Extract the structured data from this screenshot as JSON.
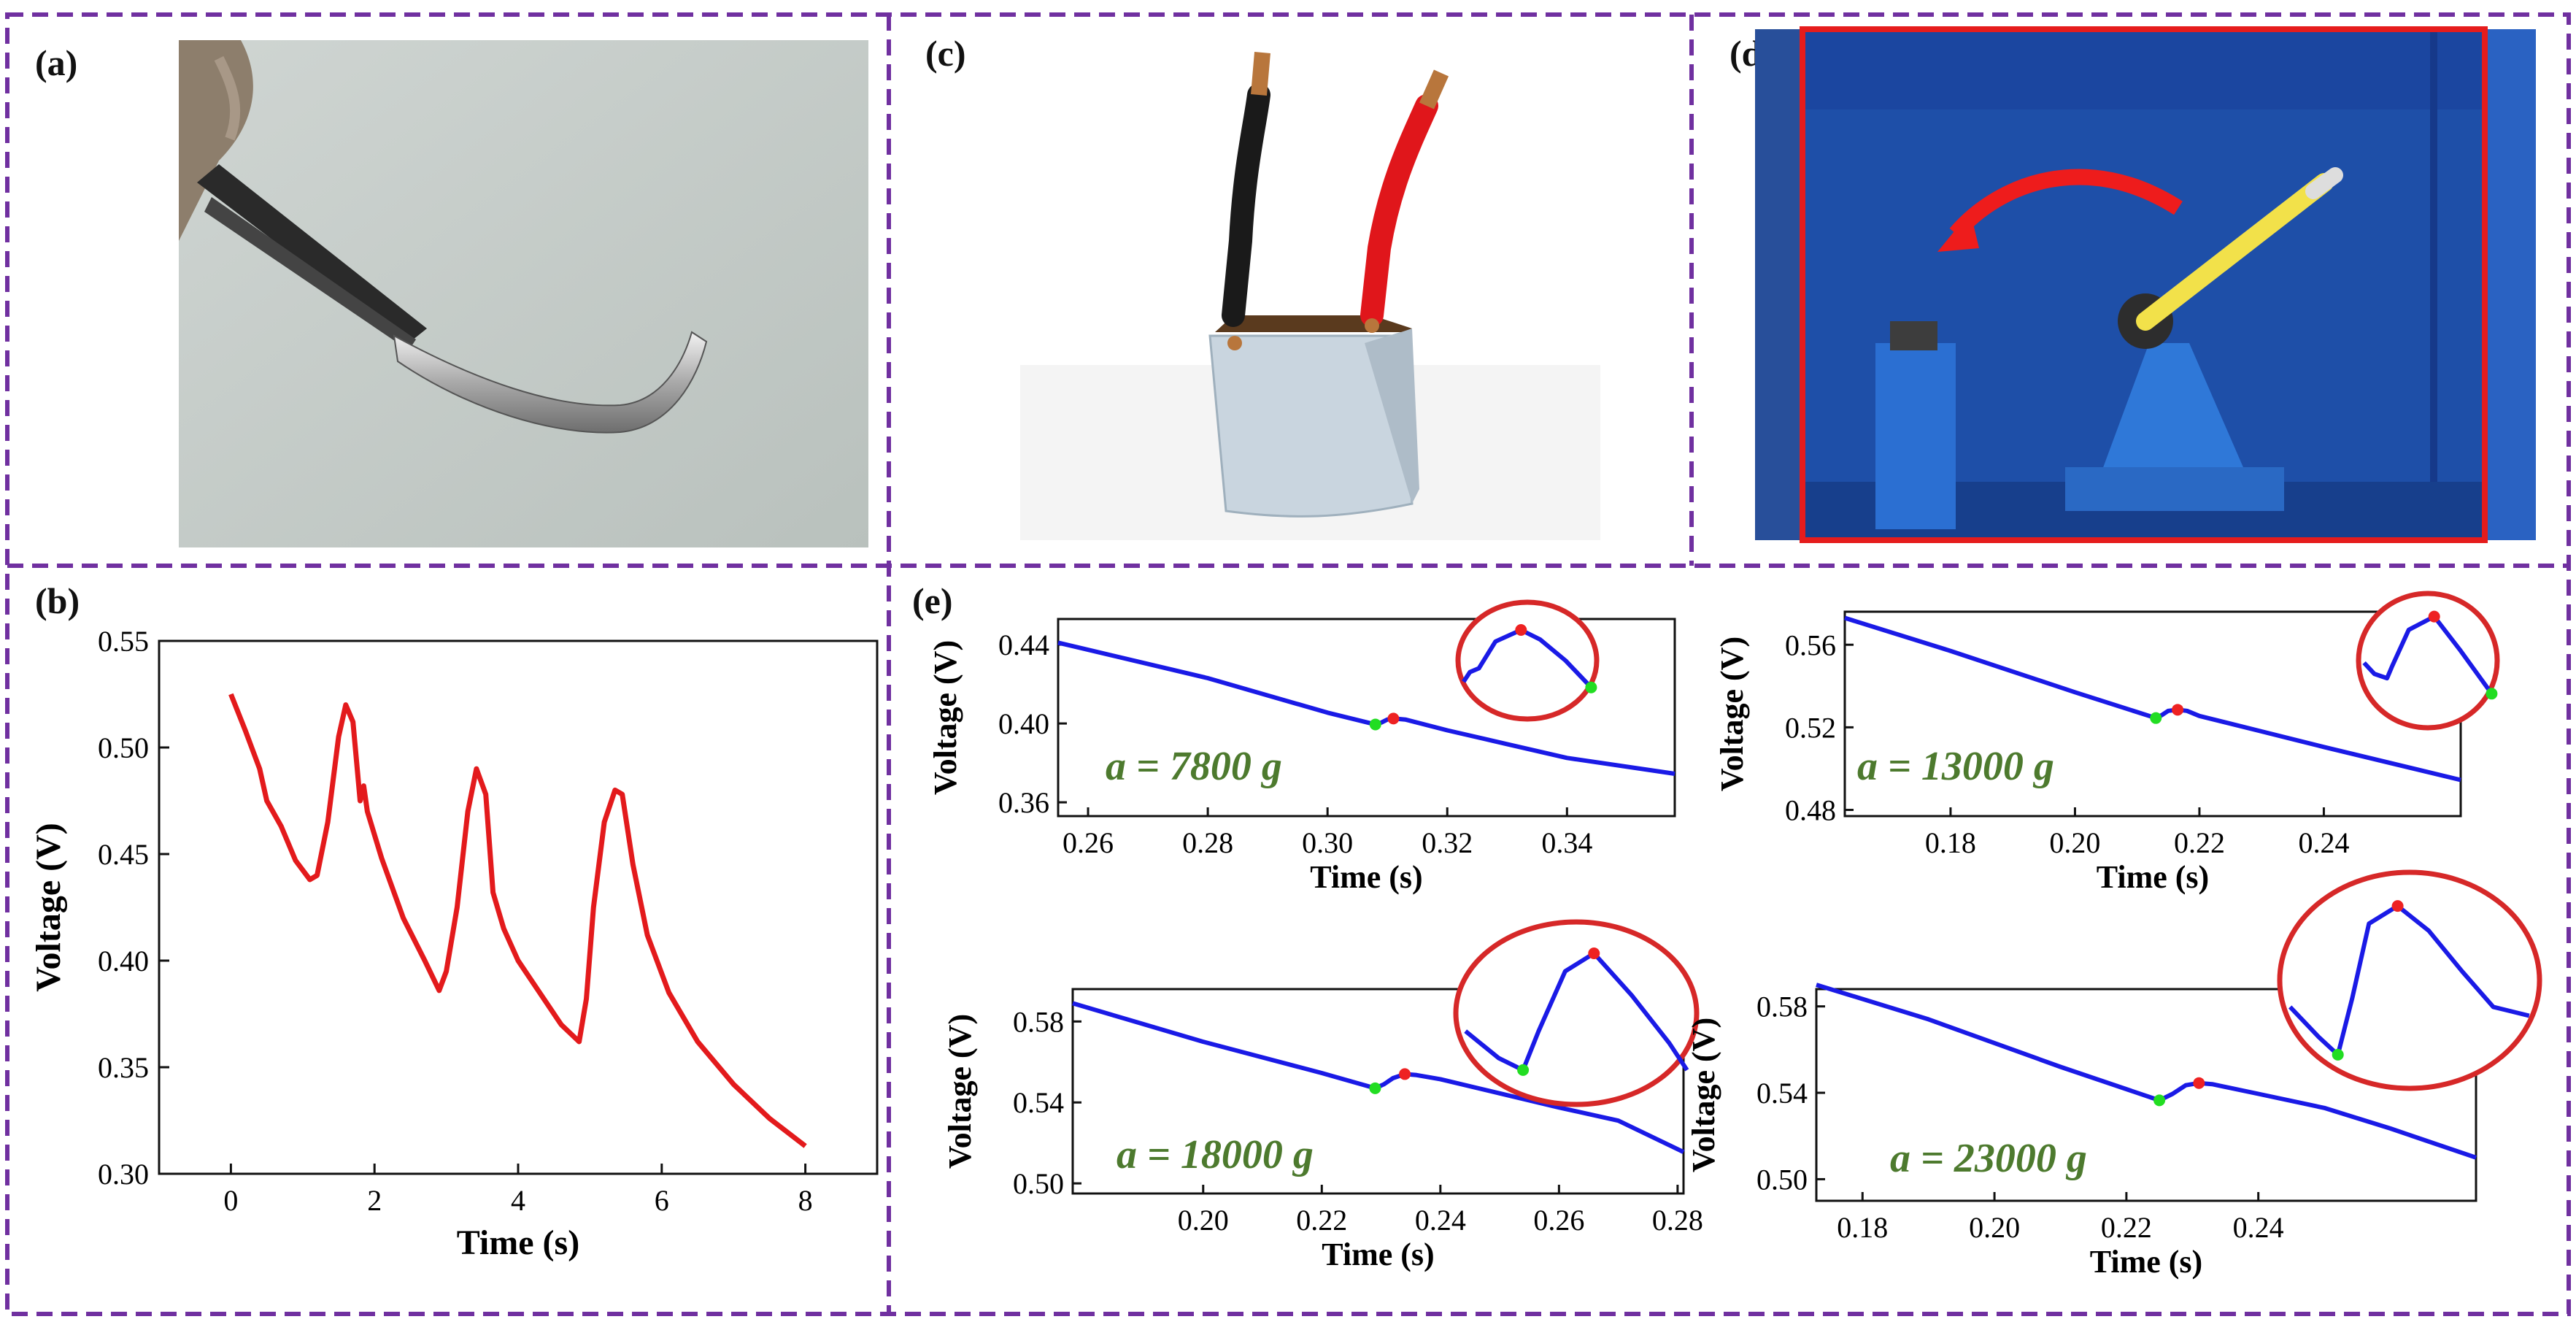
{
  "figure": {
    "panel_labels": {
      "a": "(a)",
      "b": "(b)",
      "c": "(c)",
      "d": "(d)",
      "e": "(e)"
    }
  },
  "colors": {
    "border": "#7030a0",
    "trace_b": "#e31a1c",
    "trace_e": "#1a1ae6",
    "onset_marker": "#22dd22",
    "peak_marker": "#ee2222",
    "annotation": "#4d7a2e",
    "inset_ring": "#d62828",
    "cabinet": "#1e4fa8",
    "frame_red": "#e51c1c"
  },
  "photos": {
    "a": {
      "icon": "tweezers-holding-flexible-strip-photo"
    },
    "c": {
      "icon": "cube-device-with-black-and-red-wires-photo"
    },
    "d": {
      "icon": "drop-impact-test-machine-photo"
    }
  },
  "chart_data": [
    {
      "id": "b",
      "type": "line",
      "title": "",
      "xlabel": "Time (s)",
      "ylabel": "Voltage (V)",
      "xlim": [
        -1,
        9
      ],
      "ylim": [
        0.3,
        0.55
      ],
      "xticks": [
        0,
        2,
        4,
        6,
        8
      ],
      "yticks": [
        0.3,
        0.35,
        0.4,
        0.45,
        0.5,
        0.55
      ],
      "xtick_labels": [
        "0",
        "2",
        "4",
        "6",
        "8"
      ],
      "ytick_labels": [
        "0.30",
        "0.35",
        "0.40",
        "0.45",
        "0.50",
        "0.55"
      ],
      "series": [
        {
          "name": "voltage",
          "x": [
            0.0,
            0.2,
            0.4,
            0.5,
            0.7,
            0.9,
            1.1,
            1.2,
            1.35,
            1.5,
            1.6,
            1.7,
            1.8,
            1.85,
            1.9,
            2.1,
            2.4,
            2.7,
            2.9,
            3.0,
            3.15,
            3.3,
            3.42,
            3.55,
            3.65,
            3.8,
            4.0,
            4.3,
            4.6,
            4.85,
            4.95,
            5.05,
            5.2,
            5.35,
            5.45,
            5.6,
            5.8,
            6.1,
            6.5,
            7.0,
            7.5,
            8.0
          ],
          "y": [
            0.525,
            0.508,
            0.49,
            0.475,
            0.463,
            0.447,
            0.438,
            0.44,
            0.465,
            0.505,
            0.52,
            0.512,
            0.475,
            0.482,
            0.47,
            0.448,
            0.42,
            0.4,
            0.386,
            0.395,
            0.425,
            0.47,
            0.49,
            0.478,
            0.432,
            0.415,
            0.4,
            0.385,
            0.37,
            0.362,
            0.382,
            0.425,
            0.465,
            0.48,
            0.478,
            0.445,
            0.412,
            0.385,
            0.362,
            0.342,
            0.326,
            0.313
          ]
        }
      ]
    },
    {
      "id": "e1",
      "type": "line",
      "annotation_prefix": "a = ",
      "annotation_value": "7800",
      "annotation_unit": " g",
      "xlabel": "Time (s)",
      "ylabel": "Voltage (V)",
      "xlim": [
        0.255,
        0.358
      ],
      "ylim": [
        0.353,
        0.453
      ],
      "xticks": [
        0.26,
        0.28,
        0.3,
        0.32,
        0.34
      ],
      "yticks": [
        0.36,
        0.4,
        0.44
      ],
      "xtick_labels": [
        "0.26",
        "0.28",
        "0.30",
        "0.32",
        "0.34"
      ],
      "ytick_labels": [
        "0.36",
        "0.40",
        "0.44"
      ],
      "series": [
        {
          "name": "voltage",
          "x": [
            0.255,
            0.28,
            0.3,
            0.308,
            0.309,
            0.31,
            0.311,
            0.313,
            0.32,
            0.33,
            0.34,
            0.358
          ],
          "y": [
            0.441,
            0.423,
            0.4055,
            0.3995,
            0.4005,
            0.402,
            0.4025,
            0.402,
            0.3965,
            0.3895,
            0.3825,
            0.3745
          ]
        }
      ],
      "onset": [
        0.308,
        0.3995
      ],
      "peak": [
        0.311,
        0.4025
      ],
      "inset": {
        "x": [
          0,
          0.05,
          0.12,
          0.25,
          0.45,
          0.6,
          0.8,
          1.0
        ],
        "y": [
          0.72,
          0.62,
          0.58,
          0.3,
          0.18,
          0.28,
          0.5,
          0.78
        ]
      }
    },
    {
      "id": "e2",
      "type": "line",
      "annotation_prefix": "a = ",
      "annotation_value": "13000",
      "annotation_unit": " g",
      "xlabel": "Time (s)",
      "ylabel": "Voltage (V)",
      "xlim": [
        0.163,
        0.262
      ],
      "ylim": [
        0.477,
        0.576
      ],
      "xticks": [
        0.18,
        0.2,
        0.22,
        0.24
      ],
      "yticks": [
        0.48,
        0.52,
        0.56
      ],
      "xtick_labels": [
        "0.18",
        "0.20",
        "0.22",
        "0.24"
      ],
      "ytick_labels": [
        "0.48",
        "0.52",
        "0.56"
      ],
      "series": [
        {
          "name": "voltage",
          "x": [
            0.163,
            0.18,
            0.2,
            0.213,
            0.214,
            0.215,
            0.2165,
            0.218,
            0.22,
            0.23,
            0.24,
            0.262
          ],
          "y": [
            0.573,
            0.557,
            0.537,
            0.5245,
            0.526,
            0.528,
            0.5285,
            0.528,
            0.5255,
            0.518,
            0.5105,
            0.4945
          ]
        }
      ],
      "onset": [
        0.213,
        0.5245
      ],
      "peak": [
        0.2165,
        0.5285
      ],
      "inset": {
        "x": [
          0,
          0.08,
          0.18,
          0.22,
          0.35,
          0.55,
          0.75,
          1.0
        ],
        "y": [
          0.52,
          0.62,
          0.66,
          0.55,
          0.22,
          0.1,
          0.4,
          0.8
        ]
      }
    },
    {
      "id": "e3",
      "type": "line",
      "annotation_prefix": "a = ",
      "annotation_value": "18000",
      "annotation_unit": " g",
      "xlabel": "Time (s)",
      "ylabel": "Voltage (V)",
      "xlim": [
        0.178,
        0.281
      ],
      "ylim": [
        0.495,
        0.596
      ],
      "xticks": [
        0.2,
        0.22,
        0.24,
        0.26,
        0.28
      ],
      "yticks": [
        0.5,
        0.54,
        0.58
      ],
      "xtick_labels": [
        "0.20",
        "0.22",
        "0.24",
        "0.26",
        "0.28"
      ],
      "ytick_labels": [
        "0.50",
        "0.54",
        "0.58"
      ],
      "series": [
        {
          "name": "voltage",
          "x": [
            0.178,
            0.2,
            0.22,
            0.229,
            0.2305,
            0.232,
            0.234,
            0.236,
            0.24,
            0.25,
            0.26,
            0.27,
            0.281
          ],
          "y": [
            0.589,
            0.57,
            0.5545,
            0.547,
            0.549,
            0.552,
            0.554,
            0.5535,
            0.5515,
            0.5445,
            0.5375,
            0.531,
            0.5155
          ]
        }
      ],
      "onset": [
        0.229,
        0.547
      ],
      "peak": [
        0.234,
        0.554
      ],
      "inset": {
        "x": [
          0,
          0.15,
          0.26,
          0.33,
          0.45,
          0.58,
          0.75,
          0.92,
          1.0
        ],
        "y": [
          0.62,
          0.8,
          0.88,
          0.62,
          0.22,
          0.1,
          0.38,
          0.7,
          0.88
        ]
      }
    },
    {
      "id": "e4",
      "type": "line",
      "annotation_prefix": "a = ",
      "annotation_value": "23000",
      "annotation_unit": " g",
      "xlabel": "Time (s)",
      "ylabel": "Voltage (V)",
      "xlim": [
        0.173,
        0.273
      ],
      "ylim": [
        0.49,
        0.588
      ],
      "xticks": [
        0.18,
        0.2,
        0.22,
        0.24
      ],
      "yticks": [
        0.5,
        0.54,
        0.58
      ],
      "xtick_labels": [
        "0.18",
        "0.20",
        "0.22",
        "0.24"
      ],
      "ytick_labels": [
        "0.50",
        "0.54",
        "0.58"
      ],
      "series": [
        {
          "name": "voltage",
          "x": [
            0.173,
            0.19,
            0.21,
            0.225,
            0.227,
            0.229,
            0.231,
            0.233,
            0.24,
            0.25,
            0.26,
            0.273
          ],
          "y": [
            0.59,
            0.574,
            0.552,
            0.5365,
            0.5395,
            0.5435,
            0.5445,
            0.544,
            0.5395,
            0.533,
            0.5235,
            0.51
          ]
        }
      ],
      "onset": [
        0.225,
        0.5365
      ],
      "peak": [
        0.231,
        0.5445
      ],
      "inset": {
        "x": [
          0,
          0.12,
          0.2,
          0.26,
          0.33,
          0.45,
          0.58,
          0.72,
          0.85,
          1.0
        ],
        "y": [
          0.65,
          0.82,
          0.92,
          0.6,
          0.18,
          0.08,
          0.22,
          0.45,
          0.65,
          0.7
        ]
      }
    }
  ]
}
